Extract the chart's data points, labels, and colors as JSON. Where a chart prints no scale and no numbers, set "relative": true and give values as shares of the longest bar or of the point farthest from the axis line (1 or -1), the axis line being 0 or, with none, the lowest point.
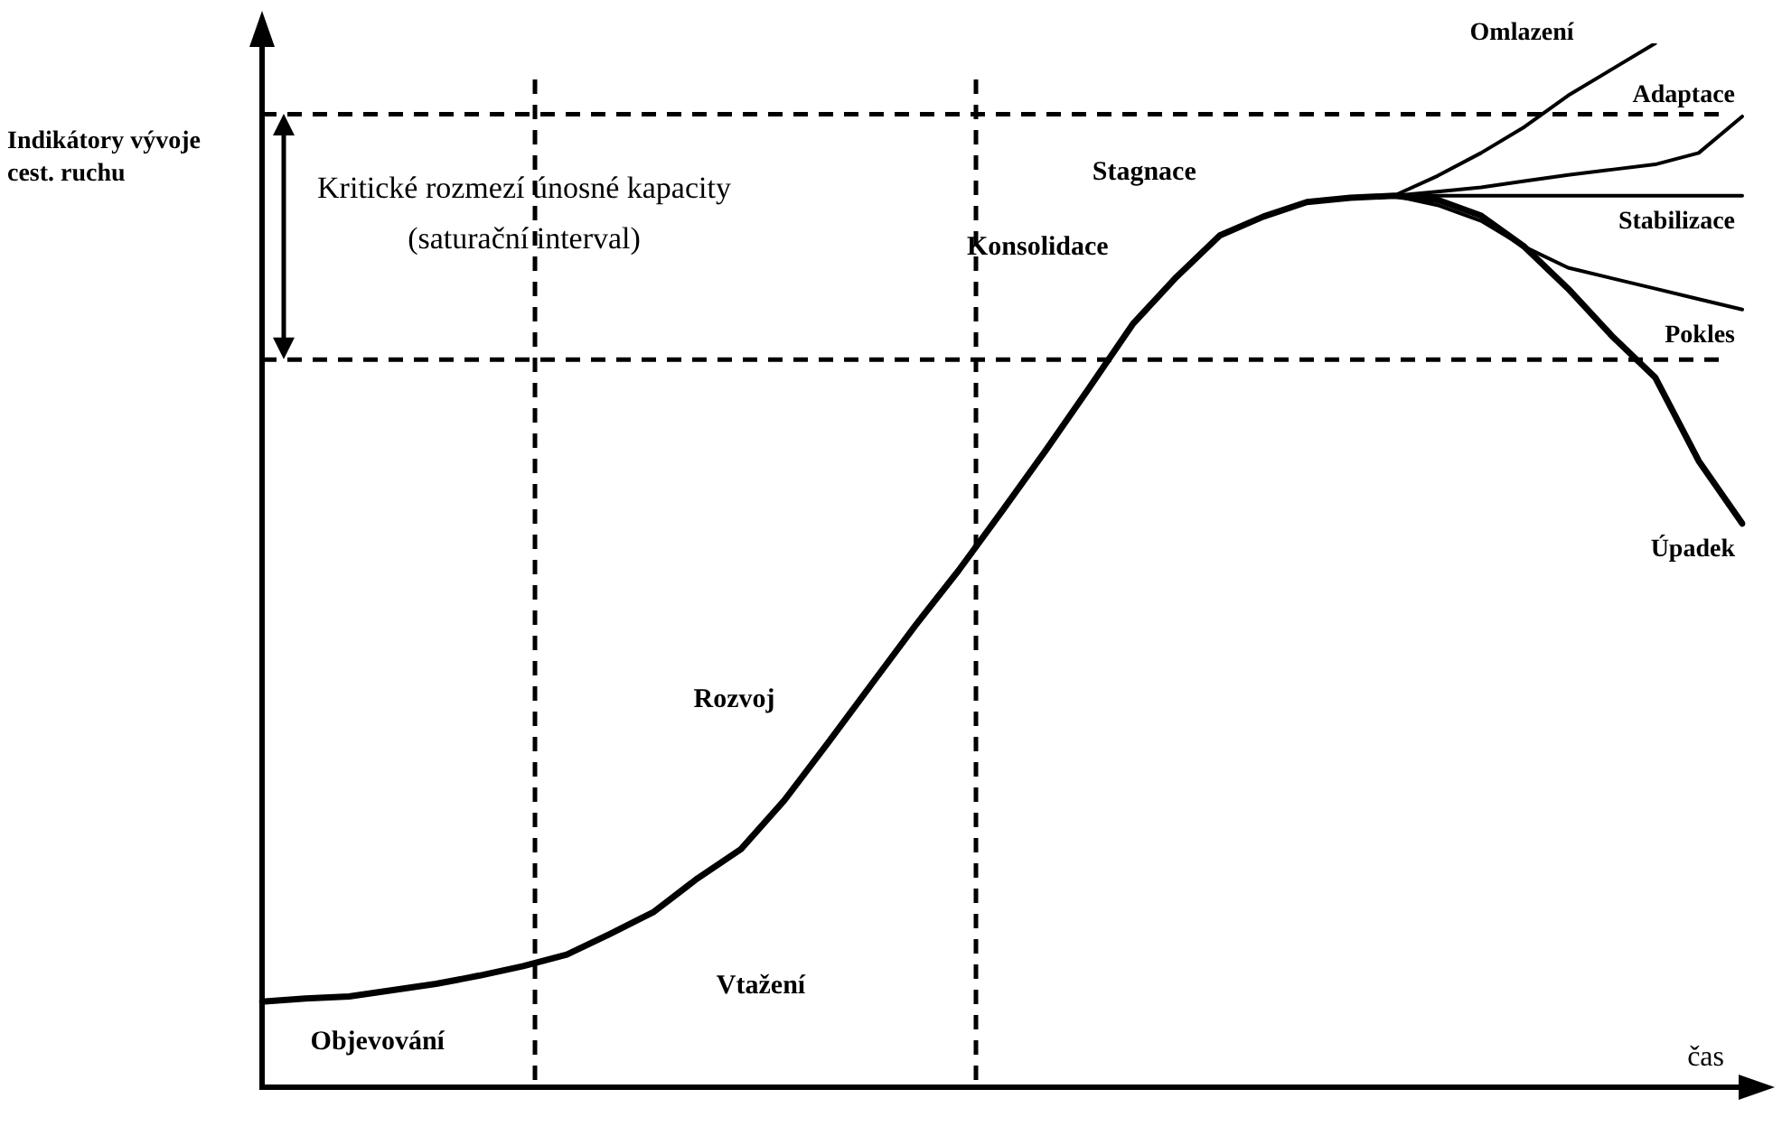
{
  "chart_data": {
    "type": "line",
    "relative": true,
    "tick_labels": false,
    "ylabel": "Indikátory vývoje cest. ruchu",
    "xlabel": "čas",
    "marker": "none",
    "legend": false,
    "grid": false,
    "categories": [
      null,
      null,
      null,
      null,
      null,
      null,
      null,
      null,
      null,
      null,
      null,
      null,
      null,
      null,
      null,
      null,
      null,
      null,
      null,
      null,
      null,
      null,
      null,
      null,
      null,
      null,
      null,
      null,
      null,
      null,
      null,
      null,
      null,
      null,
      null
    ],
    "series": [
      {
        "name": "Úpadek",
        "color": "#000000",
        "values": [
          0.082,
          0.085,
          0.087,
          0.093,
          0.099,
          0.107,
          0.116,
          0.127,
          0.147,
          0.168,
          0.2,
          0.228,
          0.275,
          0.33,
          0.386,
          0.442,
          0.495,
          0.552,
          0.61,
          0.67,
          0.731,
          0.776,
          0.816,
          0.834,
          0.848,
          0.852,
          0.854,
          0.85,
          0.835,
          0.805,
          0.765,
          0.72,
          0.68,
          0.6,
          0.54
        ]
      },
      {
        "name": "Omlazení",
        "color": "#000000",
        "values": [
          null,
          null,
          null,
          null,
          null,
          null,
          null,
          null,
          null,
          null,
          null,
          null,
          null,
          null,
          null,
          null,
          null,
          null,
          null,
          null,
          null,
          null,
          null,
          null,
          null,
          null,
          0.854,
          0.873,
          0.895,
          0.92,
          0.95,
          0.975,
          1,
          null,
          null
        ]
      },
      {
        "name": "Adaptace",
        "color": "#000000",
        "values": [
          null,
          null,
          null,
          null,
          null,
          null,
          null,
          null,
          null,
          null,
          null,
          null,
          null,
          null,
          null,
          null,
          null,
          null,
          null,
          null,
          null,
          null,
          null,
          null,
          null,
          null,
          0.854,
          0.858,
          0.862,
          0.868,
          0.874,
          0.879,
          0.884,
          0.895,
          0.93
        ]
      },
      {
        "name": "Stabilizace",
        "color": "#000000",
        "values": [
          null,
          null,
          null,
          null,
          null,
          null,
          null,
          null,
          null,
          null,
          null,
          null,
          null,
          null,
          null,
          null,
          null,
          null,
          null,
          null,
          null,
          null,
          null,
          null,
          null,
          null,
          0.854,
          0.854,
          0.854,
          0.854,
          0.854,
          0.854,
          0.854,
          0.854,
          0.854
        ]
      },
      {
        "name": "Pokles",
        "color": "#000000",
        "values": [
          null,
          null,
          null,
          null,
          null,
          null,
          null,
          null,
          null,
          null,
          null,
          null,
          null,
          null,
          null,
          null,
          null,
          null,
          null,
          null,
          null,
          null,
          null,
          null,
          null,
          null,
          0.854,
          0.845,
          0.83,
          0.805,
          0.785,
          0.775,
          0.765,
          0.755,
          0.745
        ]
      }
    ],
    "ref_lines": [
      {
        "axis": "y",
        "value": 0.932,
        "line_style": "dashed"
      },
      {
        "axis": "y",
        "value": 0.697,
        "line_style": "dashed"
      }
    ],
    "annotations": [
      "Kritické rozmezí únosné kapacity (saturační interval)",
      "Objevování",
      "Vtažení",
      "Rozvoj",
      "Konsolidace",
      "Stagnace"
    ]
  }
}
